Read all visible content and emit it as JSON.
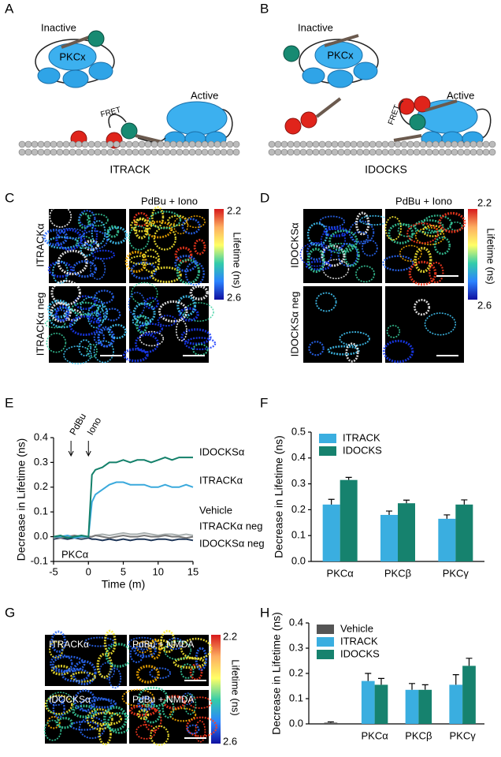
{
  "figure": {
    "A": {
      "letter": "A",
      "inactive": "Inactive",
      "pkcx": "PKCx",
      "fret": "FRET",
      "active": "Active",
      "name": "ITRACK"
    },
    "B": {
      "letter": "B",
      "inactive": "Inactive",
      "pkcx": "PKCx",
      "fret": "FRET",
      "active": "Active",
      "name": "IDOCKS"
    },
    "C": {
      "letter": "C",
      "treatment": "PdBu + Iono",
      "row_labels": [
        "ITRACKα",
        "ITRACKα neg"
      ],
      "colorbar": {
        "max": 2.2,
        "min": 2.6,
        "label": "Lifetime (ns)"
      }
    },
    "D": {
      "letter": "D",
      "treatment": "PdBu + Iono",
      "row_labels": [
        "IDOCKSα",
        "IDOCKSα neg"
      ],
      "colorbar": {
        "max": 2.2,
        "min": 2.6,
        "label": "Lifetime (ns)"
      }
    },
    "E": {
      "letter": "E"
    },
    "F": {
      "letter": "F"
    },
    "G": {
      "letter": "G",
      "labels": [
        "ITRACKα",
        "PdBu + NMDA",
        "IDOCKSα",
        "PdBu + NMDA"
      ],
      "colorbar": {
        "max": 2.2,
        "min": 2.6,
        "label": "Lifetime (ns)"
      }
    },
    "H": {
      "letter": "H"
    }
  },
  "chart_data": [
    {
      "type": "line",
      "y_label": "Decrease in Lifetime (ns)",
      "x_label": "Time (m)",
      "inset_label": "PKCα",
      "annotations": [
        {
          "text": "PdBu",
          "x": -2.5
        },
        {
          "text": "Iono",
          "x": 0
        }
      ],
      "xlim": [
        -5,
        15
      ],
      "xticks": [
        -5,
        0,
        5,
        10,
        15
      ],
      "ylim": [
        -0.1,
        0.4
      ],
      "yticks": [
        -0.1,
        {
          "value": 0,
          "label": "0.0"
        },
        0.1,
        0.2,
        0.3,
        0.4
      ],
      "x": [
        -5,
        -4,
        -3,
        -2,
        -1,
        0,
        0.5,
        1,
        2,
        3,
        4,
        5,
        6,
        7,
        8,
        9,
        10,
        11,
        12,
        13,
        14,
        15
      ],
      "series": [
        {
          "name": "IDOCKSα",
          "color": "#13806a",
          "values": [
            0,
            0.005,
            -0.005,
            0,
            0.005,
            0,
            0.25,
            0.27,
            0.28,
            0.3,
            0.3,
            0.31,
            0.3,
            0.31,
            0.31,
            0.3,
            0.31,
            0.32,
            0.31,
            0.32,
            0.32,
            0.32
          ]
        },
        {
          "name": "ITRACKα",
          "color": "#3aa9dc",
          "values": [
            0,
            0,
            0.005,
            -0.005,
            0,
            0,
            0.14,
            0.17,
            0.19,
            0.21,
            0.22,
            0.22,
            0.21,
            0.21,
            0.21,
            0.2,
            0.2,
            0.21,
            0.2,
            0.2,
            0.21,
            0.2
          ]
        },
        {
          "name": "Vehicle",
          "color": "#777777",
          "values": [
            0,
            -0.005,
            0,
            0.005,
            0,
            0,
            0,
            0.005,
            0,
            -0.005,
            0,
            0.005,
            0,
            0,
            0.005,
            0,
            0,
            0.005,
            0,
            0,
            -0.005,
            0
          ]
        },
        {
          "name": "ITRACKα neg",
          "color": "#a9b0b0",
          "values": [
            -0.005,
            0,
            0.005,
            0,
            -0.005,
            0,
            0,
            0.005,
            0.01,
            0.005,
            0.01,
            0.015,
            0.01,
            0.01,
            0.015,
            0.01,
            0.005,
            0.01,
            0.01,
            0.005,
            0.01,
            0.005
          ]
        },
        {
          "name": "IDOCKSα neg",
          "color": "#1d3557",
          "values": [
            -0.01,
            -0.005,
            -0.01,
            -0.005,
            -0.01,
            -0.005,
            -0.01,
            -0.01,
            -0.015,
            -0.01,
            -0.015,
            -0.01,
            -0.015,
            -0.01,
            -0.01,
            -0.015,
            -0.01,
            -0.01,
            -0.015,
            -0.01,
            -0.01,
            -0.015
          ]
        }
      ]
    },
    {
      "type": "bar",
      "y_label": "Decrease in Lifetime (ns)",
      "ylim": [
        0,
        0.5
      ],
      "yticks": [
        {
          "value": 0,
          "label": "0.0"
        },
        0.1,
        0.2,
        0.3,
        0.4,
        0.5
      ],
      "categories": [
        "PKCα",
        "PKCβ",
        "PKCγ"
      ],
      "series": [
        {
          "name": "ITRACK",
          "color": "#3aaee0",
          "values": [
            0.22,
            0.18,
            0.165
          ],
          "errors": [
            0.02,
            0.015,
            0.015
          ]
        },
        {
          "name": "IDOCKS",
          "color": "#16826e",
          "values": [
            0.315,
            0.225,
            0.22
          ],
          "errors": [
            0.01,
            0.012,
            0.018
          ]
        }
      ]
    },
    {
      "type": "bar",
      "y_label": "Decrease in Lifetime (ns)",
      "ylim": [
        0,
        0.4
      ],
      "yticks": [
        {
          "value": 0,
          "label": "0.0"
        },
        0.1,
        0.2,
        0.3,
        0.4
      ],
      "categories": [
        null,
        "PKCα",
        "PKCβ",
        "PKCγ"
      ],
      "series": [
        {
          "name": "Vehicle",
          "color": "#555555",
          "values": [
            0.005,
            null,
            null,
            null
          ],
          "errors": [
            0.003,
            null,
            null,
            null
          ]
        },
        {
          "name": "ITRACK",
          "color": "#3aaee0",
          "values": [
            null,
            0.17,
            0.135,
            0.155
          ],
          "errors": [
            null,
            0.03,
            0.025,
            0.04
          ]
        },
        {
          "name": "IDOCKS",
          "color": "#16826e",
          "values": [
            null,
            0.155,
            0.135,
            0.23
          ],
          "errors": [
            null,
            0.025,
            0.02,
            0.03
          ]
        }
      ]
    }
  ]
}
